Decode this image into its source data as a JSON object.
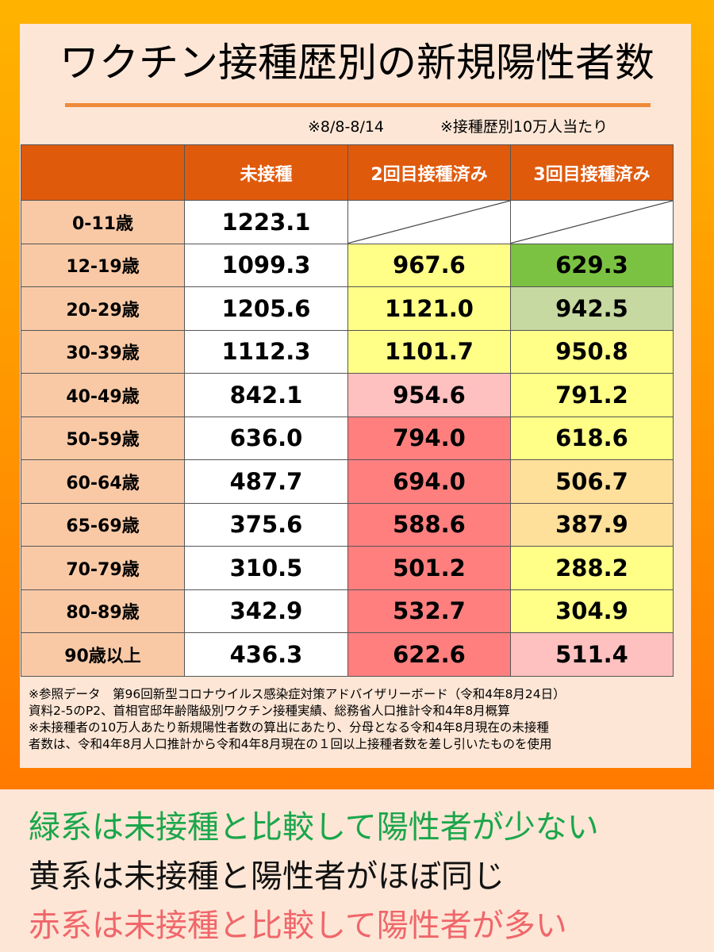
{
  "title": "ワクチン接種歴別の新規陽性者数",
  "notes": {
    "period": "※8/8-8/14",
    "basis": "※接種歴別10万人当たり"
  },
  "colors": {
    "header": "#e05a0c",
    "age_cell": "#f9c9a6",
    "white": "#ffffff",
    "green_dark": "#7cc242",
    "green_light": "#c6d9a0",
    "yellow": "#ffff88",
    "orange_light": "#ffe09a",
    "pink": "#ffc0c0",
    "red": "#ff7f7f"
  },
  "table": {
    "columns": [
      "未接種",
      "2回目接種済み",
      "3回目接種済み"
    ],
    "rows": [
      {
        "age": "0-11歳",
        "unvaccinated": "1223.1",
        "dose2": "",
        "dose3": "",
        "c1": "white",
        "c2": "blank",
        "c3": "blank"
      },
      {
        "age": "12-19歳",
        "unvaccinated": "1099.3",
        "dose2": "967.6",
        "dose3": "629.3",
        "c1": "white",
        "c2": "yellow",
        "c3": "green_dark"
      },
      {
        "age": "20-29歳",
        "unvaccinated": "1205.6",
        "dose2": "1121.0",
        "dose3": "942.5",
        "c1": "white",
        "c2": "yellow",
        "c3": "green_light"
      },
      {
        "age": "30-39歳",
        "unvaccinated": "1112.3",
        "dose2": "1101.7",
        "dose3": "950.8",
        "c1": "white",
        "c2": "yellow",
        "c3": "yellow"
      },
      {
        "age": "40-49歳",
        "unvaccinated": "842.1",
        "dose2": "954.6",
        "dose3": "791.2",
        "c1": "white",
        "c2": "pink",
        "c3": "yellow"
      },
      {
        "age": "50-59歳",
        "unvaccinated": "636.0",
        "dose2": "794.0",
        "dose3": "618.6",
        "c1": "white",
        "c2": "red",
        "c3": "yellow"
      },
      {
        "age": "60-64歳",
        "unvaccinated": "487.7",
        "dose2": "694.0",
        "dose3": "506.7",
        "c1": "white",
        "c2": "red",
        "c3": "orange_light"
      },
      {
        "age": "65-69歳",
        "unvaccinated": "375.6",
        "dose2": "588.6",
        "dose3": "387.9",
        "c1": "white",
        "c2": "red",
        "c3": "orange_light"
      },
      {
        "age": "70-79歳",
        "unvaccinated": "310.5",
        "dose2": "501.2",
        "dose3": "288.2",
        "c1": "white",
        "c2": "red",
        "c3": "yellow"
      },
      {
        "age": "80-89歳",
        "unvaccinated": "342.9",
        "dose2": "532.7",
        "dose3": "304.9",
        "c1": "white",
        "c2": "red",
        "c3": "yellow"
      },
      {
        "age": "90歳以上",
        "unvaccinated": "436.3",
        "dose2": "622.6",
        "dose3": "511.4",
        "c1": "white",
        "c2": "red",
        "c3": "pink"
      }
    ]
  },
  "footnotes": [
    "※参照データ　第96回新型コロナウイルス感染症対策アドバイザリーボード（令和4年8月24日）",
    "資料2-5のP2、首相官邸年齢階級別ワクチン接種実績、総務省人口推計令和4年8月概算",
    "※未接種者の10万人あたり新規陽性者数の算出にあたり、分母となる令和4年8月現在の未接種",
    "者数は、令和4年8月人口推計から令和4年8月現在の１回以上接種者数を差し引いたものを使用"
  ],
  "legend": {
    "green": "緑系は未接種と比較して陽性者が少ない",
    "black": "黄系は未接種と陽性者がほぼ同じ",
    "red": "赤系は未接種と比較して陽性者が多い"
  }
}
